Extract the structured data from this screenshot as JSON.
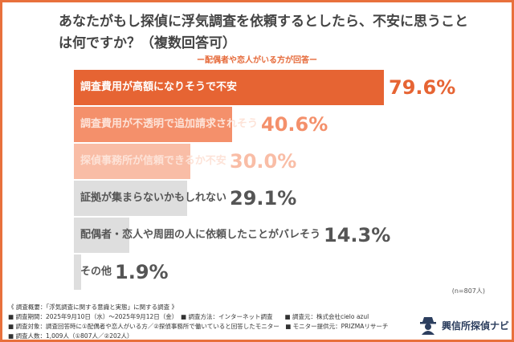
{
  "chart_data": {
    "type": "bar",
    "orientation": "horizontal",
    "title": "あなたがもし探偵に浮気調査を依頼するとしたら、不安に思うことは何ですか？（複数回答可）",
    "subtitle": "ー配偶者や恋人がいる方が回答ー",
    "categories": [
      "調査費用が高額になりそうで不安",
      "調査費用が不透明で追加請求されそう",
      "探偵事務所が信頼できるか不安",
      "証拠が集まらないかもしれない",
      "配偶者・恋人や周囲の人に依頼したことがバレそう",
      "その他"
    ],
    "values": [
      79.6,
      40.6,
      30.0,
      29.1,
      14.3,
      1.9
    ],
    "value_labels": [
      "79.6%",
      "40.6%",
      "30.0%",
      "29.1%",
      "14.3%",
      "1.9%"
    ],
    "bar_colors": [
      "#e66433",
      "#f4906b",
      "#f9bda6",
      "#dedede",
      "#dedede",
      "#dedede"
    ],
    "label_colors": [
      "#ffffff",
      "#fde3d8",
      "#fde3d8",
      "#555555",
      "#555555",
      "#555555"
    ],
    "value_colors": [
      "#e66433",
      "#f4906b",
      "#f9bda6",
      "#555555",
      "#555555",
      "#555555"
    ],
    "note": "(n=807人)",
    "grid": false
  },
  "footer": {
    "lines": [
      "《 調査概要：「浮気調査に関する意識と実態」に関する調査 》",
      "■ 調査期間：2025年9月10日（水）～2025年9月12日（金）　■ 調査方法：インターネット調査　　■ 調査元：株式会社cielo azul",
      "■ 調査対象：調査回答時に①配偶者や恋人がいる方／②探偵事務所で働いていると回答したモニター　■ モニター提供元：PRIZMAリサーチ",
      "■ 調査人数：1,009人（①807人／②202人）"
    ],
    "logo": "興信所探偵ナビ"
  },
  "colors": {
    "accent": "#e8703c",
    "logo": "#2c3e5e"
  }
}
